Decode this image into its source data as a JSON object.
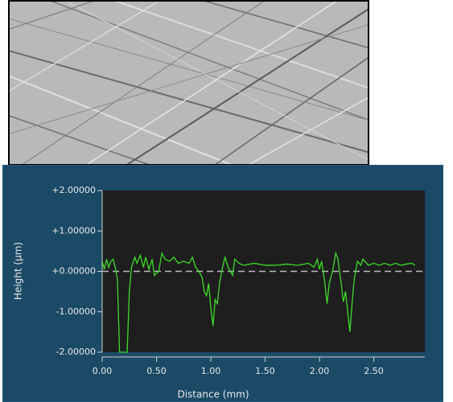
{
  "chart_data": {
    "type": "line",
    "x_label": "Distance (mm)",
    "y_label": "Height (µm)",
    "xlim": [
      0,
      2.97
    ],
    "ylim": [
      -2,
      2
    ],
    "xticks": [
      {
        "value": 0,
        "label": "0.00"
      },
      {
        "value": 0.5,
        "label": "0.50"
      },
      {
        "value": 1,
        "label": "1.00"
      },
      {
        "value": 1.5,
        "label": "1.50"
      },
      {
        "value": 2,
        "label": "2.00"
      },
      {
        "value": 2.5,
        "label": "2.50"
      }
    ],
    "yticks": [
      {
        "value": 2,
        "label": "+2.00000"
      },
      {
        "value": 1,
        "label": "+1.00000"
      },
      {
        "value": 0,
        "label": "+0.00000"
      },
      {
        "value": -1,
        "label": "-1.00000"
      },
      {
        "value": -2,
        "label": "-2.00000"
      }
    ],
    "zero_line": true,
    "color": "#3ddc2a",
    "x": [
      0.0,
      0.02,
      0.04,
      0.06,
      0.08,
      0.1,
      0.12,
      0.14,
      0.16,
      0.2,
      0.23,
      0.25,
      0.27,
      0.3,
      0.32,
      0.35,
      0.38,
      0.4,
      0.43,
      0.46,
      0.48,
      0.52,
      0.55,
      0.58,
      0.62,
      0.66,
      0.7,
      0.75,
      0.8,
      0.83,
      0.86,
      0.89,
      0.92,
      0.94,
      0.96,
      0.98,
      1.0,
      1.02,
      1.04,
      1.06,
      1.08,
      1.1,
      1.13,
      1.16,
      1.2,
      1.22,
      1.26,
      1.3,
      1.4,
      1.5,
      1.6,
      1.7,
      1.8,
      1.9,
      1.95,
      1.98,
      2.0,
      2.02,
      2.05,
      2.07,
      2.09,
      2.12,
      2.15,
      2.17,
      2.2,
      2.22,
      2.24,
      2.26,
      2.28,
      2.3,
      2.32,
      2.35,
      2.38,
      2.4,
      2.45,
      2.5,
      2.55,
      2.6,
      2.65,
      2.7,
      2.75,
      2.8,
      2.85,
      2.88
    ],
    "values": [
      0.25,
      0.05,
      0.3,
      0.1,
      0.25,
      0.3,
      0.1,
      -0.2,
      -2,
      -2,
      -2,
      -0.5,
      0.1,
      0.35,
      0.2,
      0.4,
      0.1,
      0.35,
      0.05,
      0.3,
      -0.1,
      0,
      0.45,
      0.3,
      0.25,
      0.35,
      0.2,
      0.25,
      0.2,
      0.35,
      0.1,
      0,
      -0.15,
      -0.5,
      -0.6,
      -0.3,
      -0.9,
      -1.35,
      -0.7,
      -0.8,
      -0.3,
      0,
      0.35,
      0.1,
      -0.1,
      0.3,
      0.2,
      0.15,
      0.2,
      0.15,
      0.15,
      0.18,
      0.15,
      0.2,
      0.1,
      0.3,
      0.05,
      0.25,
      -0.3,
      -0.8,
      -0.3,
      0,
      0.45,
      0.3,
      -0.3,
      -0.75,
      -0.5,
      -1,
      -1.5,
      -0.8,
      -0.2,
      0.25,
      0.15,
      0.3,
      0.15,
      0.2,
      0.15,
      0.2,
      0.15,
      0.2,
      0.15,
      0.18,
      0.2,
      0.15
    ]
  }
}
